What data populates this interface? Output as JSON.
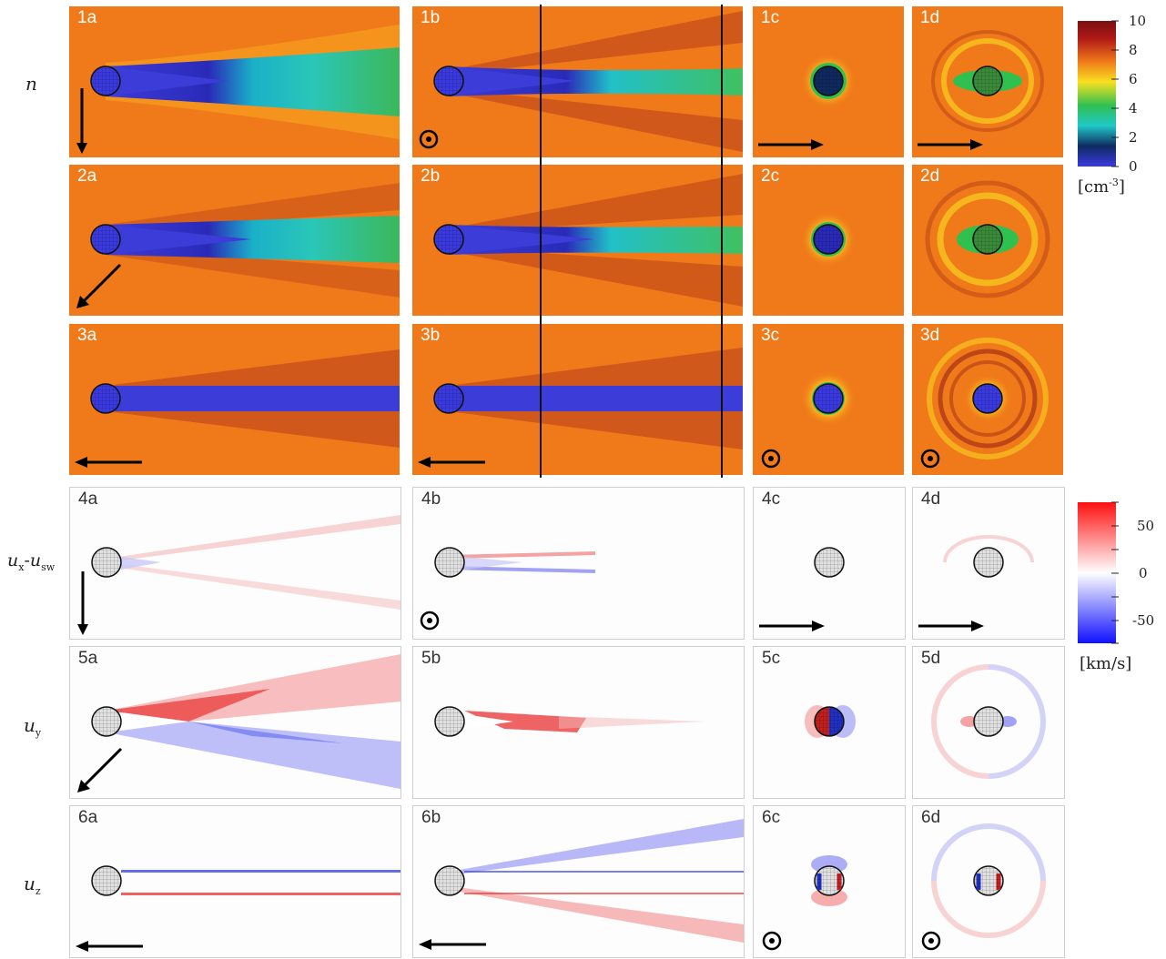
{
  "row_labels": {
    "density": "n",
    "ux_main": "u",
    "ux_sub": "x",
    "ux_minus": "-",
    "ux_main2": "u",
    "ux_sub2": "sw",
    "uy_main": "u",
    "uy_sub": "y",
    "uz_main": "u",
    "uz_sub": "z"
  },
  "panels": {
    "p1a": "1a",
    "p1b": "1b",
    "p1c": "1c",
    "p1d": "1d",
    "p2a": "2a",
    "p2b": "2b",
    "p2c": "2c",
    "p2d": "2d",
    "p3a": "3a",
    "p3b": "3b",
    "p3c": "3c",
    "p3d": "3d",
    "p4a": "4a",
    "p4b": "4b",
    "p4c": "4c",
    "p4d": "4d",
    "p5a": "5a",
    "p5b": "5b",
    "p5c": "5c",
    "p5d": "5d",
    "p6a": "6a",
    "p6b": "6b",
    "p6c": "6c",
    "p6d": "6d"
  },
  "density_colorbar": {
    "ticks": [
      "10",
      "8",
      "6",
      "4",
      "2",
      "0"
    ],
    "unit_main": "[cm",
    "unit_sup": "-3",
    "unit_end": "]",
    "range": [
      0,
      10
    ]
  },
  "velocity_colorbar": {
    "ticks": [
      "50",
      "0",
      "-50"
    ],
    "unit": "[km/s]",
    "range": [
      -75,
      75
    ]
  },
  "colors": {
    "background_plasma": "#f07a1a",
    "wake": "#4a4ae0",
    "positive": "#e8262a",
    "negative": "#2b3df0"
  },
  "icons": {
    "arrow_down": "arrow-down-icon",
    "arrow_diag": "arrow-diagonal-icon",
    "arrow_left": "arrow-left-icon",
    "arrow_right": "arrow-right-icon",
    "out_of_page": "out-of-page-icon"
  }
}
